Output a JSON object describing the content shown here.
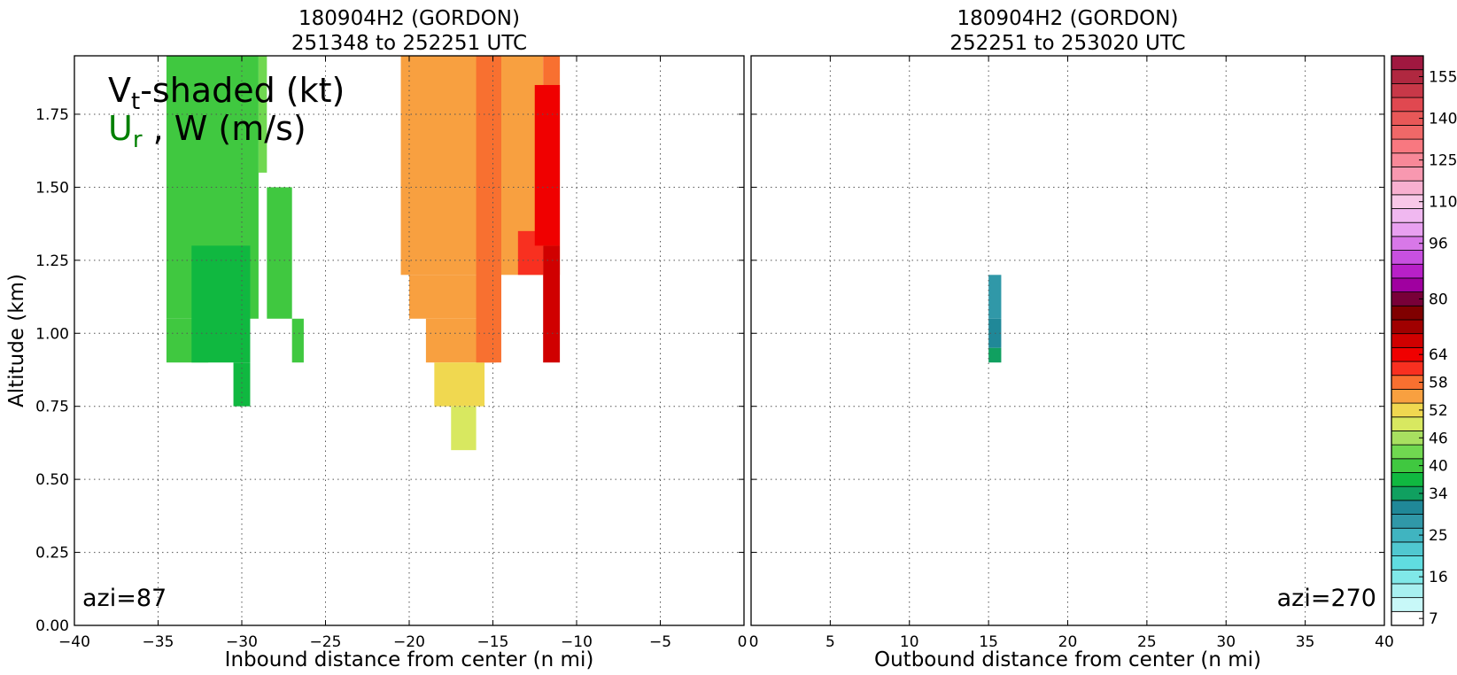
{
  "chart_data": [
    {
      "type": "contour",
      "panel": "left",
      "title_line1": "180904H2 (GORDON)",
      "title_line2": "251348 to 252251 UTC",
      "xlabel": "Inbound distance from center (n mi)",
      "ylabel": "Altitude (km)",
      "xlim": [
        -40,
        0
      ],
      "ylim": [
        0,
        1.95
      ],
      "xticks": [
        -40,
        -35,
        -30,
        -25,
        -20,
        -15,
        -10,
        -5,
        0
      ],
      "yticks": [
        0.0,
        0.25,
        0.5,
        0.75,
        1.0,
        1.25,
        1.5,
        1.75
      ],
      "ytick_labels": [
        "0.00",
        "0.25",
        "0.50",
        "0.75",
        "1.00",
        "1.25",
        "1.50",
        "1.75"
      ],
      "grid": true,
      "annotation_main": "V",
      "annotation_main_sub": "t",
      "annotation_main_rest": "-shaded (kt)",
      "annotation_second": "U",
      "annotation_second_sub": "r",
      "annotation_second_rest": " , W (m/s)",
      "azimuth_label": "azi=87",
      "filled_regions": [
        {
          "x": [
            -34.5,
            -29.0
          ],
          "y": [
            1.05,
            1.95
          ],
          "value": 40
        },
        {
          "x": [
            -34.5,
            -32.0
          ],
          "y": [
            0.9,
            1.05
          ],
          "value": 40
        },
        {
          "x": [
            -29.0,
            -28.5
          ],
          "y": [
            1.55,
            1.95
          ],
          "value": 43
        },
        {
          "x": [
            -28.5,
            -27.0
          ],
          "y": [
            1.05,
            1.5
          ],
          "value": 40
        },
        {
          "x": [
            -27.0,
            -26.3
          ],
          "y": [
            0.9,
            1.05
          ],
          "value": 40
        },
        {
          "x": [
            -33.0,
            -29.5
          ],
          "y": [
            0.9,
            1.3
          ],
          "value": 37
        },
        {
          "x": [
            -30.5,
            -29.5
          ],
          "y": [
            0.75,
            0.9
          ],
          "value": 37
        },
        {
          "x": [
            -20.5,
            -12.0
          ],
          "y": [
            1.2,
            1.95
          ],
          "value": 55
        },
        {
          "x": [
            -20.0,
            -14.5
          ],
          "y": [
            1.05,
            1.2
          ],
          "value": 55
        },
        {
          "x": [
            -19.0,
            -14.8
          ],
          "y": [
            0.9,
            1.05
          ],
          "value": 55
        },
        {
          "x": [
            -18.5,
            -15.5
          ],
          "y": [
            0.75,
            0.9
          ],
          "value": 53
        },
        {
          "x": [
            -17.5,
            -16.0
          ],
          "y": [
            0.6,
            0.75
          ],
          "value": 50
        },
        {
          "x": [
            -16.0,
            -14.5
          ],
          "y": [
            0.9,
            1.95
          ],
          "value": 58
        },
        {
          "x": [
            -13.5,
            -12.0
          ],
          "y": [
            1.2,
            1.35
          ],
          "value": 61
        },
        {
          "x": [
            -12.0,
            -11.0
          ],
          "y": [
            1.2,
            1.95
          ],
          "value": 58
        },
        {
          "x": [
            -12.5,
            -11.0
          ],
          "y": [
            1.3,
            1.85
          ],
          "value": 64
        },
        {
          "x": [
            -12.0,
            -11.0
          ],
          "y": [
            0.9,
            1.3
          ],
          "value": 68
        }
      ]
    },
    {
      "type": "contour",
      "panel": "right",
      "title_line1": "180904H2 (GORDON)",
      "title_line2": "252251 to 253020 UTC",
      "xlabel": "Outbound distance from center (n mi)",
      "xlim": [
        0,
        40
      ],
      "ylim": [
        0,
        1.95
      ],
      "xticks": [
        0,
        5,
        10,
        15,
        20,
        25,
        30,
        35,
        40
      ],
      "grid": true,
      "azimuth_label": "azi=270",
      "filled_regions": [
        {
          "x": [
            15.0,
            15.8
          ],
          "y": [
            1.05,
            1.2
          ],
          "value": 28
        },
        {
          "x": [
            15.0,
            15.8
          ],
          "y": [
            0.95,
            1.05
          ],
          "value": 31
        },
        {
          "x": [
            15.0,
            15.8
          ],
          "y": [
            0.9,
            0.95
          ],
          "value": 34
        }
      ]
    }
  ],
  "colorbar": {
    "levels": [
      7,
      10,
      13,
      16,
      19,
      22,
      25,
      28,
      31,
      34,
      37,
      40,
      43,
      46,
      49,
      52,
      55,
      58,
      61,
      64,
      68,
      72,
      76,
      80,
      84,
      88,
      92,
      96,
      100,
      105,
      110,
      115,
      120,
      125,
      130,
      135,
      140,
      145,
      150,
      155,
      160
    ],
    "tick_labels": [
      "7",
      "16",
      "25",
      "34",
      "40",
      "46",
      "52",
      "58",
      "64",
      "80",
      "96",
      "110",
      "125",
      "140",
      "155"
    ],
    "colors": [
      "#ffffff",
      "#c8f8f8",
      "#a8f0f0",
      "#80e8e8",
      "#60dde0",
      "#50c8d0",
      "#40b4c0",
      "#3098a8",
      "#208898",
      "#10a060",
      "#10b840",
      "#40c840",
      "#70d850",
      "#a8e060",
      "#d8e860",
      "#f0d850",
      "#f8a040",
      "#f87030",
      "#f83020",
      "#f00000",
      "#d00000",
      "#a00000",
      "#800000",
      "#780038",
      "#a000a0",
      "#b820c8",
      "#c850e0",
      "#d878e8",
      "#e8a0f0",
      "#f0b8f0",
      "#f8c8e8",
      "#f8b0d0",
      "#f898b0",
      "#f88898",
      "#f87880",
      "#f06868",
      "#e85858",
      "#e04850",
      "#c83848",
      "#b02840",
      "#a01840"
    ]
  }
}
